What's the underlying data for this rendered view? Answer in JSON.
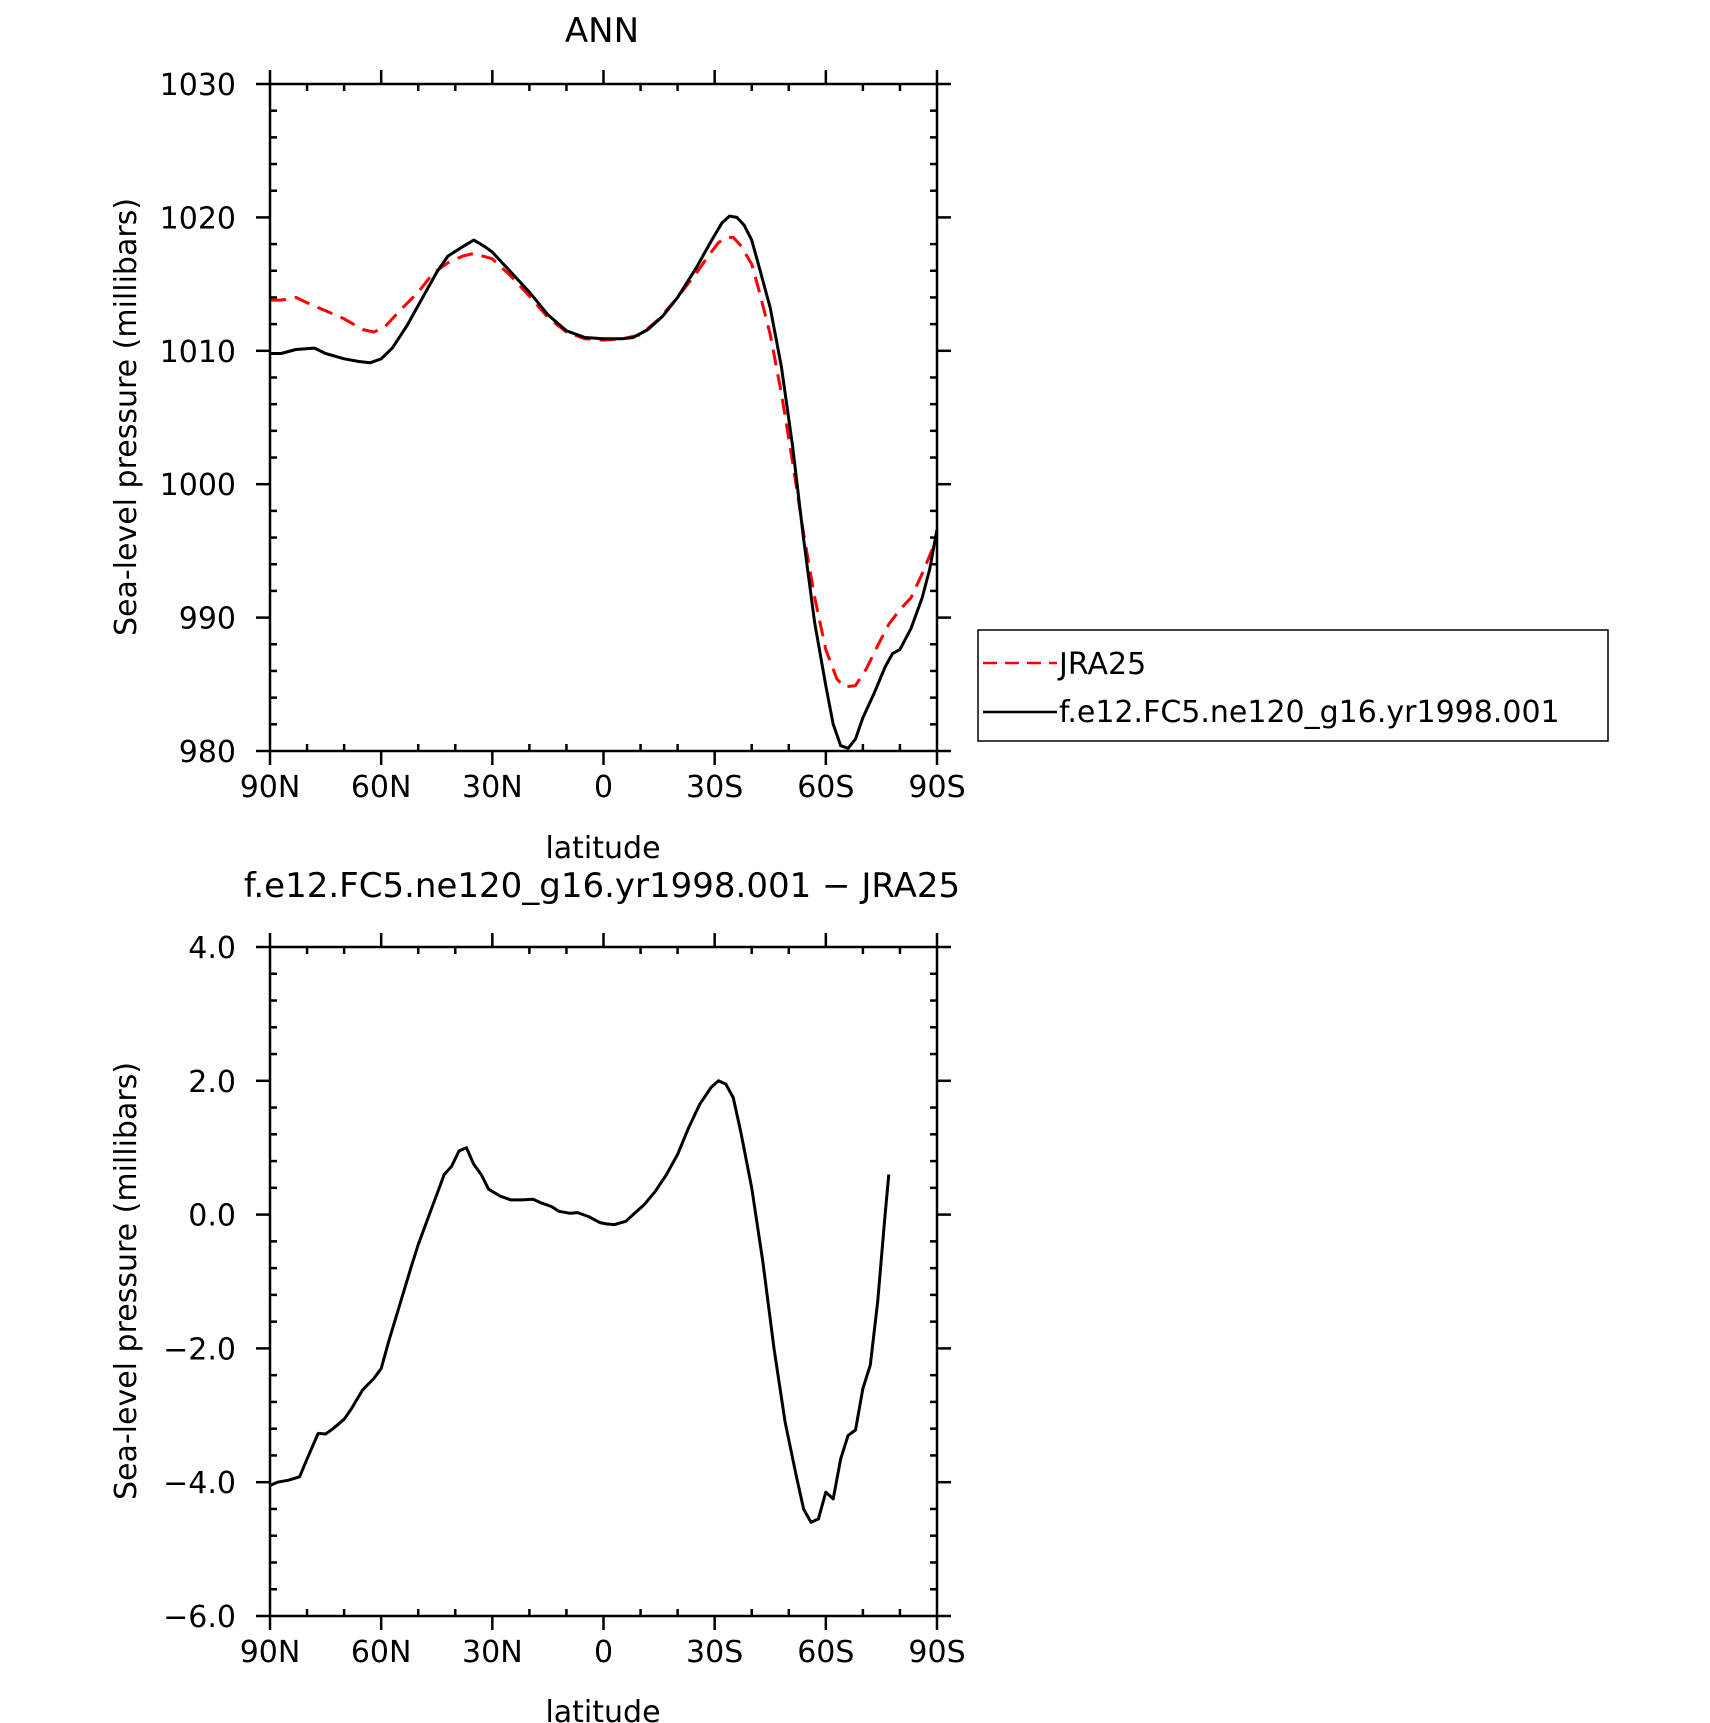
{
  "chart_data": [
    {
      "type": "line",
      "title": "ANN",
      "xlabel": "latitude",
      "ylabel": "Sea-level pressure (millibars)",
      "xlim": [
        90,
        -90
      ],
      "ylim": [
        980,
        1030
      ],
      "x_ticks": [
        {
          "value": 90,
          "label": "90N"
        },
        {
          "value": 60,
          "label": "60N"
        },
        {
          "value": 30,
          "label": "30N"
        },
        {
          "value": 0,
          "label": "0"
        },
        {
          "value": -30,
          "label": "30S"
        },
        {
          "value": -60,
          "label": "60S"
        },
        {
          "value": -90,
          "label": "90S"
        }
      ],
      "y_ticks": [
        {
          "value": 980,
          "label": "980"
        },
        {
          "value": 990,
          "label": "990"
        },
        {
          "value": 1000,
          "label": "1000"
        },
        {
          "value": 1010,
          "label": "1010"
        },
        {
          "value": 1020,
          "label": "1020"
        },
        {
          "value": 1030,
          "label": "1030"
        }
      ],
      "legend_position": "right",
      "series": [
        {
          "name": "JRA25",
          "color": "#ff0000",
          "dash": "dashed",
          "points": [
            [
              90,
              1013.8
            ],
            [
              87,
              1013.8
            ],
            [
              83,
              1014.0
            ],
            [
              80,
              1013.6
            ],
            [
              75,
              1013.0
            ],
            [
              70,
              1012.4
            ],
            [
              65,
              1011.6
            ],
            [
              62,
              1011.4
            ],
            [
              59,
              1011.8
            ],
            [
              55,
              1013.0
            ],
            [
              50,
              1014.4
            ],
            [
              46,
              1015.8
            ],
            [
              42,
              1016.6
            ],
            [
              38,
              1017.1
            ],
            [
              35,
              1017.3
            ],
            [
              30,
              1016.9
            ],
            [
              25,
              1015.6
            ],
            [
              20,
              1014.1
            ],
            [
              15,
              1012.5
            ],
            [
              10,
              1011.4
            ],
            [
              5,
              1010.9
            ],
            [
              0,
              1010.8
            ],
            [
              -5,
              1010.9
            ],
            [
              -10,
              1011.2
            ],
            [
              -15,
              1012.4
            ],
            [
              -20,
              1014.0
            ],
            [
              -25,
              1015.8
            ],
            [
              -28,
              1017.0
            ],
            [
              -31,
              1018.1
            ],
            [
              -33,
              1018.5
            ],
            [
              -35,
              1018.5
            ],
            [
              -37,
              1017.9
            ],
            [
              -40,
              1016.5
            ],
            [
              -42,
              1014.5
            ],
            [
              -45,
              1011.2
            ],
            [
              -48,
              1006.8
            ],
            [
              -51,
              1001.7
            ],
            [
              -54,
              996.3
            ],
            [
              -57,
              991.5
            ],
            [
              -60,
              987.6
            ],
            [
              -63,
              985.4
            ],
            [
              -65,
              984.8
            ],
            [
              -68,
              984.9
            ],
            [
              -71,
              986.2
            ],
            [
              -74,
              987.9
            ],
            [
              -77,
              989.5
            ],
            [
              -80,
              990.6
            ],
            [
              -83,
              991.5
            ],
            [
              -86,
              993.3
            ],
            [
              -89,
              995.3
            ],
            [
              -90,
              996.3
            ]
          ]
        },
        {
          "name": "f.e12.FC5.ne120_g16.yr1998.001",
          "color": "#000000",
          "dash": "solid",
          "points": [
            [
              90,
              1009.8
            ],
            [
              87,
              1009.8
            ],
            [
              83,
              1010.1
            ],
            [
              78,
              1010.2
            ],
            [
              75,
              1009.8
            ],
            [
              70,
              1009.4
            ],
            [
              66,
              1009.2
            ],
            [
              63,
              1009.1
            ],
            [
              60,
              1009.4
            ],
            [
              57,
              1010.2
            ],
            [
              53,
              1011.9
            ],
            [
              49,
              1013.9
            ],
            [
              45,
              1015.9
            ],
            [
              42,
              1017.1
            ],
            [
              38,
              1017.8
            ],
            [
              35,
              1018.3
            ],
            [
              32,
              1017.8
            ],
            [
              30,
              1017.4
            ],
            [
              25,
              1015.9
            ],
            [
              20,
              1014.4
            ],
            [
              15,
              1012.7
            ],
            [
              10,
              1011.5
            ],
            [
              5,
              1011.0
            ],
            [
              0,
              1010.9
            ],
            [
              -5,
              1010.9
            ],
            [
              -8,
              1011.0
            ],
            [
              -12,
              1011.6
            ],
            [
              -16,
              1012.6
            ],
            [
              -20,
              1014.0
            ],
            [
              -25,
              1016.2
            ],
            [
              -29,
              1018.2
            ],
            [
              -32,
              1019.6
            ],
            [
              -34,
              1020.1
            ],
            [
              -36,
              1020.0
            ],
            [
              -38,
              1019.4
            ],
            [
              -40,
              1018.3
            ],
            [
              -42,
              1016.3
            ],
            [
              -45,
              1013.2
            ],
            [
              -48,
              1008.8
            ],
            [
              -51,
              1002.9
            ],
            [
              -54,
              995.9
            ],
            [
              -57,
              989.6
            ],
            [
              -60,
              984.9
            ],
            [
              -62,
              982.0
            ],
            [
              -64,
              980.4
            ],
            [
              -66,
              980.2
            ],
            [
              -68,
              980.9
            ],
            [
              -70,
              982.5
            ],
            [
              -73,
              984.3
            ],
            [
              -76,
              986.3
            ],
            [
              -78,
              987.3
            ],
            [
              -80,
              987.6
            ],
            [
              -83,
              989.2
            ],
            [
              -86,
              991.5
            ],
            [
              -88,
              993.6
            ],
            [
              -90,
              996.6
            ]
          ]
        }
      ]
    },
    {
      "type": "line",
      "title": "f.e12.FC5.ne120_g16.yr1998.001 − JRA25",
      "xlabel": "latitude",
      "ylabel": "Sea-level pressure (millibars)",
      "xlim": [
        90,
        -90
      ],
      "ylim": [
        -6.0,
        4.0
      ],
      "x_ticks": [
        {
          "value": 90,
          "label": "90N"
        },
        {
          "value": 60,
          "label": "60N"
        },
        {
          "value": 30,
          "label": "30N"
        },
        {
          "value": 0,
          "label": "0"
        },
        {
          "value": -30,
          "label": "30S"
        },
        {
          "value": -60,
          "label": "60S"
        },
        {
          "value": -90,
          "label": "90S"
        }
      ],
      "y_ticks": [
        {
          "value": -6.0,
          "label": "−6.0"
        },
        {
          "value": -4.0,
          "label": "−4.0"
        },
        {
          "value": -2.0,
          "label": "−2.0"
        },
        {
          "value": 0.0,
          "label": "0.0"
        },
        {
          "value": 2.0,
          "label": "2.0"
        },
        {
          "value": 4.0,
          "label": "4.0"
        }
      ],
      "series": [
        {
          "color": "#000000",
          "dash": "solid",
          "points": [
            [
              90,
              -4.05
            ],
            [
              88,
              -4.0
            ],
            [
              85,
              -3.97
            ],
            [
              82,
              -3.92
            ],
            [
              80,
              -3.65
            ],
            [
              77,
              -3.27
            ],
            [
              75,
              -3.28
            ],
            [
              73,
              -3.2
            ],
            [
              70,
              -3.06
            ],
            [
              68,
              -2.9
            ],
            [
              65,
              -2.62
            ],
            [
              62,
              -2.45
            ],
            [
              60,
              -2.3
            ],
            [
              58,
              -1.9
            ],
            [
              55,
              -1.35
            ],
            [
              52,
              -0.8
            ],
            [
              50,
              -0.45
            ],
            [
              47,
              0.0
            ],
            [
              45,
              0.3
            ],
            [
              43,
              0.6
            ],
            [
              41,
              0.72
            ],
            [
              39,
              0.95
            ],
            [
              37,
              1.0
            ],
            [
              35,
              0.75
            ],
            [
              33,
              0.6
            ],
            [
              31,
              0.38
            ],
            [
              28,
              0.28
            ],
            [
              25,
              0.22
            ],
            [
              22,
              0.22
            ],
            [
              19,
              0.23
            ],
            [
              17,
              0.18
            ],
            [
              14,
              0.12
            ],
            [
              12,
              0.05
            ],
            [
              9,
              0.02
            ],
            [
              7,
              0.03
            ],
            [
              4,
              -0.03
            ],
            [
              1,
              -0.12
            ],
            [
              -1,
              -0.14
            ],
            [
              -3,
              -0.15
            ],
            [
              -6,
              -0.1
            ],
            [
              -8,
              0.0
            ],
            [
              -11,
              0.15
            ],
            [
              -14,
              0.35
            ],
            [
              -17,
              0.6
            ],
            [
              -20,
              0.9
            ],
            [
              -23,
              1.3
            ],
            [
              -26,
              1.65
            ],
            [
              -29,
              1.9
            ],
            [
              -31,
              2.0
            ],
            [
              -33,
              1.95
            ],
            [
              -35,
              1.75
            ],
            [
              -37,
              1.25
            ],
            [
              -40,
              0.4
            ],
            [
              -43,
              -0.7
            ],
            [
              -46,
              -2.0
            ],
            [
              -49,
              -3.1
            ],
            [
              -52,
              -3.9
            ],
            [
              -54,
              -4.4
            ],
            [
              -56,
              -4.6
            ],
            [
              -58,
              -4.55
            ],
            [
              -60,
              -4.15
            ],
            [
              -62,
              -4.25
            ],
            [
              -64,
              -3.65
            ],
            [
              -66,
              -3.3
            ],
            [
              -68,
              -3.22
            ],
            [
              -70,
              -2.6
            ],
            [
              -72,
              -2.25
            ],
            [
              -74,
              -1.3
            ],
            [
              -76,
              0.0
            ],
            [
              -77,
              0.6
            ]
          ]
        }
      ]
    }
  ]
}
